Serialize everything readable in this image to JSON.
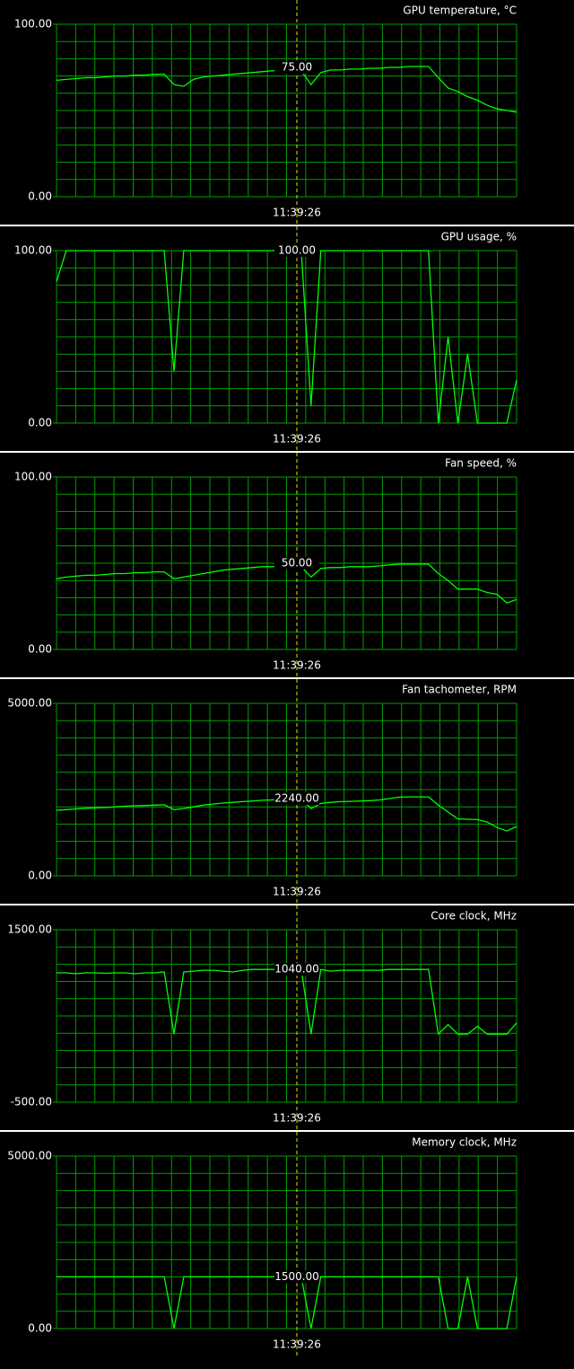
{
  "chart_data": [
    {
      "type": "line",
      "title": "GPU temperature, °C",
      "color": "#00ff00",
      "ylim": [
        0,
        100
      ],
      "yticks": [
        {
          "value": 100,
          "label": "100.00"
        },
        {
          "value": 0,
          "label": "0.00"
        }
      ],
      "grid": true,
      "cursor": {
        "time": "11:39:26",
        "value": 75,
        "value_label": "75.00"
      },
      "values": [
        67.5,
        68,
        68.5,
        69,
        69,
        69.5,
        70,
        70,
        70.5,
        70.5,
        71,
        71,
        65,
        64,
        68,
        69.5,
        70,
        70.5,
        71,
        71.5,
        72,
        72.5,
        73,
        73,
        73.5,
        73,
        65,
        72,
        73.5,
        73.5,
        74,
        74,
        74.5,
        74.5,
        75,
        75,
        75.5,
        75.5,
        75.5,
        69,
        63,
        61,
        58,
        56,
        53,
        51,
        50,
        49
      ]
    },
    {
      "type": "line",
      "title": "GPU usage, %",
      "color": "#00ff00",
      "ylim": [
        0,
        100
      ],
      "yticks": [
        {
          "value": 100,
          "label": "100.00"
        },
        {
          "value": 0,
          "label": "0.00"
        }
      ],
      "grid": true,
      "cursor": {
        "time": "11:39:26",
        "value": 100,
        "value_label": "100.00"
      },
      "values": [
        82,
        100,
        100,
        100,
        100,
        100,
        100,
        100,
        100,
        100,
        100,
        100,
        30,
        100,
        100,
        100,
        100,
        100,
        100,
        100,
        100,
        100,
        100,
        100,
        100,
        100,
        10,
        100,
        100,
        100,
        100,
        100,
        100,
        100,
        100,
        100,
        100,
        100,
        100,
        0,
        50,
        0,
        40,
        0,
        0,
        0,
        0,
        25
      ]
    },
    {
      "type": "line",
      "title": "Fan speed, %",
      "color": "#00ff00",
      "ylim": [
        0,
        100
      ],
      "yticks": [
        {
          "value": 100,
          "label": "100.00"
        },
        {
          "value": 0,
          "label": "0.00"
        }
      ],
      "grid": true,
      "cursor": {
        "time": "11:39:26",
        "value": 50,
        "value_label": "50.00"
      },
      "values": [
        41,
        42,
        42.5,
        43,
        43,
        43.5,
        44,
        44,
        44.5,
        44.5,
        45,
        45,
        41,
        42,
        43,
        44,
        45,
        46,
        46.5,
        47,
        47.5,
        48,
        48,
        48,
        48.5,
        48,
        42,
        47,
        47.5,
        47.5,
        48,
        48,
        48,
        48.5,
        49,
        49.5,
        49.5,
        49.5,
        49.5,
        44,
        40,
        35,
        35,
        35,
        33,
        32,
        27,
        29
      ]
    },
    {
      "type": "line",
      "title": "Fan tachometer, RPM",
      "color": "#00ff00",
      "ylim": [
        0,
        5000
      ],
      "yticks": [
        {
          "value": 5000,
          "label": "5000.00"
        },
        {
          "value": 0,
          "label": "0.00"
        }
      ],
      "grid": true,
      "cursor": {
        "time": "11:39:26",
        "value": 2240,
        "value_label": "2240.00"
      },
      "values": [
        1900,
        1920,
        1940,
        1960,
        1970,
        1980,
        2000,
        2020,
        2030,
        2040,
        2050,
        2060,
        1920,
        1950,
        2000,
        2050,
        2080,
        2110,
        2130,
        2150,
        2170,
        2190,
        2200,
        2210,
        2220,
        2230,
        1950,
        2100,
        2130,
        2150,
        2160,
        2170,
        2180,
        2200,
        2240,
        2280,
        2290,
        2290,
        2290,
        2050,
        1850,
        1650,
        1640,
        1630,
        1560,
        1400,
        1300,
        1430
      ]
    },
    {
      "type": "line",
      "title": "Core clock, MHz",
      "color": "#00ff00",
      "ylim": [
        -500,
        1500
      ],
      "yticks": [
        {
          "value": 1500,
          "label": "1500.00"
        },
        {
          "value": -500,
          "label": "-500.00"
        }
      ],
      "grid": true,
      "cursor": {
        "time": "11:39:26",
        "value": 1040,
        "value_label": "1040.00"
      },
      "values": [
        1000,
        1000,
        990,
        1000,
        1000,
        995,
        1000,
        1000,
        990,
        1000,
        1000,
        1010,
        290,
        1010,
        1020,
        1030,
        1030,
        1020,
        1010,
        1030,
        1040,
        1040,
        1040,
        1040,
        1040,
        1040,
        290,
        1040,
        1020,
        1030,
        1030,
        1030,
        1030,
        1030,
        1040,
        1040,
        1040,
        1040,
        1040,
        290,
        400,
        290,
        290,
        380,
        290,
        290,
        290,
        420
      ]
    },
    {
      "type": "line",
      "title": "Memory clock, MHz",
      "color": "#00ff00",
      "ylim": [
        0,
        5000
      ],
      "yticks": [
        {
          "value": 5000,
          "label": "5000.00"
        },
        {
          "value": 0,
          "label": "0.00"
        }
      ],
      "grid": true,
      "cursor": {
        "time": "11:39:26",
        "value": 1500,
        "value_label": "1500.00"
      },
      "values": [
        1500,
        1500,
        1500,
        1500,
        1500,
        1500,
        1500,
        1500,
        1500,
        1500,
        1500,
        1500,
        0,
        1500,
        1500,
        1500,
        1500,
        1500,
        1500,
        1500,
        1500,
        1500,
        1500,
        1500,
        1500,
        1500,
        0,
        1500,
        1500,
        1500,
        1500,
        1500,
        1500,
        1500,
        1500,
        1500,
        1500,
        1500,
        1500,
        1500,
        0,
        0,
        1500,
        0,
        0,
        0,
        0,
        1500
      ]
    }
  ]
}
